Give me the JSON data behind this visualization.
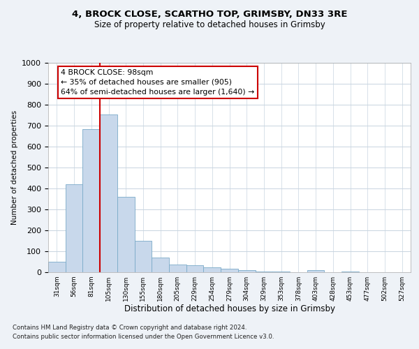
{
  "title_line1": "4, BROCK CLOSE, SCARTHO TOP, GRIMSBY, DN33 3RE",
  "title_line2": "Size of property relative to detached houses in Grimsby",
  "xlabel": "Distribution of detached houses by size in Grimsby",
  "ylabel": "Number of detached properties",
  "categories": [
    "31sqm",
    "56sqm",
    "81sqm",
    "105sqm",
    "130sqm",
    "155sqm",
    "180sqm",
    "205sqm",
    "229sqm",
    "254sqm",
    "279sqm",
    "304sqm",
    "329sqm",
    "353sqm",
    "378sqm",
    "403sqm",
    "428sqm",
    "453sqm",
    "477sqm",
    "502sqm",
    "527sqm"
  ],
  "values": [
    50,
    420,
    685,
    755,
    360,
    150,
    70,
    37,
    35,
    25,
    17,
    10,
    5,
    5,
    0,
    10,
    0,
    5,
    0,
    0,
    0
  ],
  "bar_color": "#c8d8eb",
  "bar_edge_color": "#7aaac8",
  "vline_x": 2.5,
  "vline_color": "#cc0000",
  "annotation_text": "4 BROCK CLOSE: 98sqm\n← 35% of detached houses are smaller (905)\n64% of semi-detached houses are larger (1,640) →",
  "annotation_box_color": "#ffffff",
  "annotation_box_edge": "#cc0000",
  "ylim": [
    0,
    1000
  ],
  "yticks": [
    0,
    100,
    200,
    300,
    400,
    500,
    600,
    700,
    800,
    900,
    1000
  ],
  "footer_line1": "Contains HM Land Registry data © Crown copyright and database right 2024.",
  "footer_line2": "Contains public sector information licensed under the Open Government Licence v3.0.",
  "bg_color": "#eef2f7",
  "plot_bg_color": "#ffffff",
  "grid_color": "#c8d4e0"
}
